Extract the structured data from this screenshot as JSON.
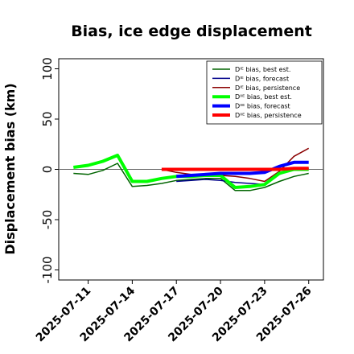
{
  "chart_data": {
    "type": "line",
    "title": "Bias, ice edge displacement",
    "xlabel": "",
    "ylabel": "Displacement bias (km)",
    "ylim": [
      -110,
      110
    ],
    "xlim": [
      "2025-07-09",
      "2025-07-27"
    ],
    "yticks": [
      -100,
      -50,
      0,
      50,
      100
    ],
    "xticks": [
      "2025-07-11",
      "2025-07-14",
      "2025-07-17",
      "2025-07-20",
      "2025-07-23",
      "2025-07-26"
    ],
    "highlighted_xtick": "2025-07-17",
    "highlight_color": "#228b22",
    "reference_line": 0,
    "legend_position": "top-right",
    "grid": false,
    "series": [
      {
        "name": "Dᴵᴱ bias, best est.",
        "color": "#006400",
        "width": 1.5,
        "x": [
          "2025-07-10",
          "2025-07-11",
          "2025-07-12",
          "2025-07-13",
          "2025-07-14",
          "2025-07-15",
          "2025-07-16",
          "2025-07-17",
          "2025-07-18",
          "2025-07-19",
          "2025-07-20",
          "2025-07-21",
          "2025-07-22",
          "2025-07-23",
          "2025-07-24",
          "2025-07-25",
          "2025-07-26"
        ],
        "values": [
          -4,
          -5,
          -1,
          6,
          -17,
          -16,
          -14,
          -11,
          -10,
          -9,
          -9,
          -21,
          -21,
          -18,
          -12,
          -7,
          -4
        ]
      },
      {
        "name": "Dᴵᴱ bias, forecast",
        "color": "#00008b",
        "width": 1.5,
        "x": [
          "2025-07-17",
          "2025-07-18",
          "2025-07-19",
          "2025-07-20",
          "2025-07-21",
          "2025-07-22",
          "2025-07-23",
          "2025-07-24",
          "2025-07-25",
          "2025-07-26"
        ],
        "values": [
          -12,
          -11,
          -10,
          -11,
          -13,
          -14,
          -15,
          -5,
          0,
          1
        ]
      },
      {
        "name": "Dᴵᴱ bias, persistence",
        "color": "#8b0000",
        "width": 1.5,
        "x": [
          "2025-07-16",
          "2025-07-17",
          "2025-07-18",
          "2025-07-19",
          "2025-07-20",
          "2025-07-21",
          "2025-07-22",
          "2025-07-23",
          "2025-07-24",
          "2025-07-25",
          "2025-07-26"
        ],
        "values": [
          0,
          -3,
          -5,
          -6,
          -6,
          -7,
          -9,
          -12,
          -2,
          13,
          21
        ]
      },
      {
        "name": "Dᴵᴵᴱ bias, best est.",
        "color": "#00ff00",
        "width": 4,
        "x": [
          "2025-07-10",
          "2025-07-11",
          "2025-07-12",
          "2025-07-13",
          "2025-07-14",
          "2025-07-15",
          "2025-07-16",
          "2025-07-17",
          "2025-07-18",
          "2025-07-19",
          "2025-07-20",
          "2025-07-21",
          "2025-07-22",
          "2025-07-23",
          "2025-07-24",
          "2025-07-25",
          "2025-07-26"
        ],
        "values": [
          2,
          4,
          8,
          14,
          -12,
          -12,
          -9,
          -7,
          -7,
          -6,
          -6,
          -18,
          -17,
          -15,
          -4,
          0,
          0
        ]
      },
      {
        "name": "Dᴵᴵᴱ bias, forecast",
        "color": "#0000ff",
        "width": 4,
        "x": [
          "2025-07-17",
          "2025-07-18",
          "2025-07-19",
          "2025-07-20",
          "2025-07-21",
          "2025-07-22",
          "2025-07-23",
          "2025-07-24",
          "2025-07-25",
          "2025-07-26"
        ],
        "values": [
          -7,
          -6,
          -5,
          -4,
          -4,
          -4,
          -3,
          3,
          7,
          7
        ]
      },
      {
        "name": "Dᴵᴵᴱ bias, persistence",
        "color": "#ff0000",
        "width": 4,
        "x": [
          "2025-07-16",
          "2025-07-17",
          "2025-07-18",
          "2025-07-19",
          "2025-07-20",
          "2025-07-21",
          "2025-07-22",
          "2025-07-23",
          "2025-07-24",
          "2025-07-25",
          "2025-07-26"
        ],
        "values": [
          0,
          0,
          0,
          0,
          0,
          0,
          0,
          0,
          0,
          1,
          1
        ]
      }
    ]
  }
}
